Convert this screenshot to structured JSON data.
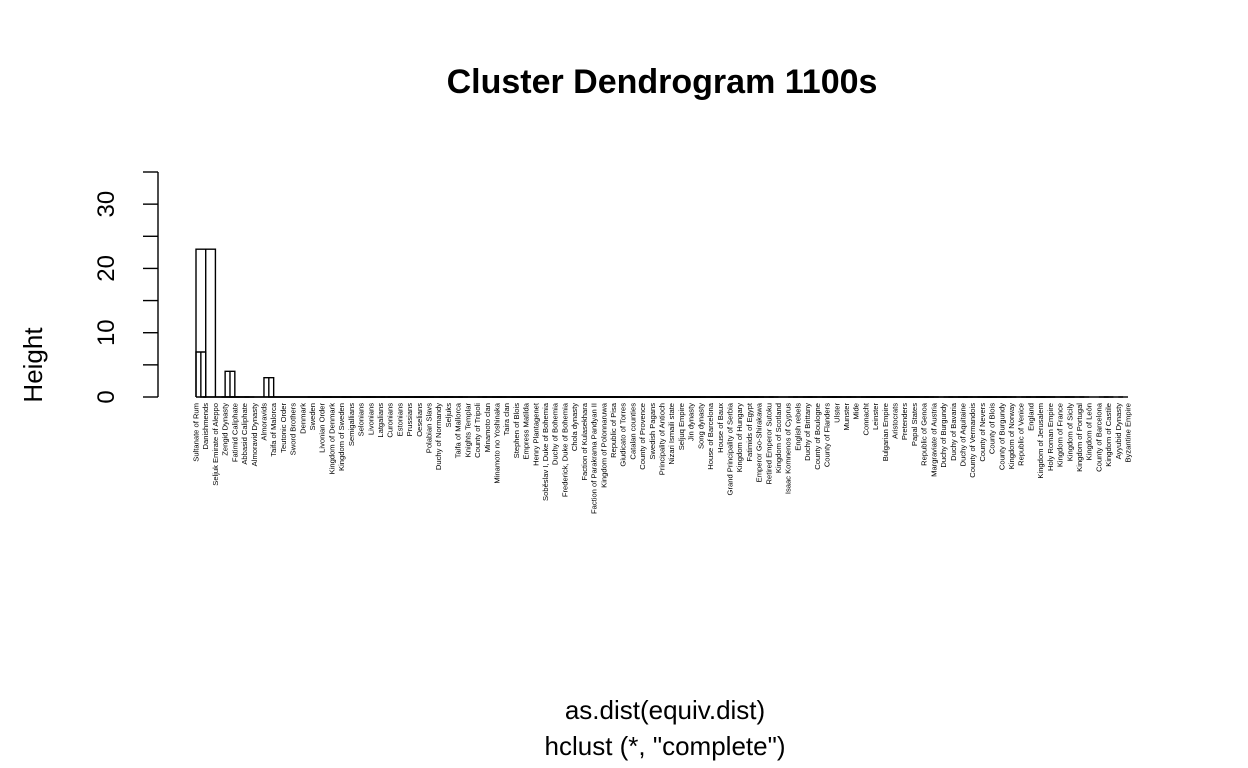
{
  "chart_data": {
    "type": "dendrogram",
    "title": "Cluster Dendrogram 1100s",
    "xlabel": "as.dist(equiv.dist)",
    "sublabel": "hclust (*, \"complete\")",
    "ylabel": "Height",
    "y_ticks": [
      0,
      10,
      20,
      30
    ],
    "y_minor_ticks": [
      5,
      15,
      25,
      35
    ],
    "ylim": [
      0,
      35
    ],
    "cluster_rect_color": "#DF536B",
    "leaves": [
      "Sultanate of Rum",
      "Danishmends",
      "Seljuk Emirate of Aleppo",
      "Zengid Dynasty",
      "Fatimid Caliphate",
      "Abbasid Caliphate",
      "Almoravid Dynasty",
      "Almoravids",
      "Taifa of Malorca",
      "Teutonic Order",
      "Sword Brothers",
      "Denmark",
      "Sweden",
      "Livonian Order",
      "Kingdom of Denmark",
      "Kingdom of Sweden",
      "Semigallians",
      "Selonians",
      "Livonians",
      "Latgalians",
      "Curonians",
      "Estonians",
      "Prussians",
      "Oeselians",
      "Polabian Slavs",
      "Duchy of Normandy",
      "Seljuks",
      "Taifa of Mallorca",
      "Knights Templar",
      "County of Tripoli",
      "Minamoto clan",
      "Minamoto no Yoshinaka",
      "Taira clan",
      "Stephen of Blois",
      "Empress Matilda",
      "Henry Plantagenet",
      "Soběslav I, Duke of Bohemia",
      "Duchy of Bohemia",
      "Frederick, Duke of Bohemia",
      "Chola dynasty",
      "Faction of Kulasekhara",
      "Faction of Parakrama Pandyan II",
      "Kingdom of Polonnaruwa",
      "Republic of Pisa",
      "Giudicato of Torres",
      "Catalan counties",
      "County of Provence",
      "Swedish Pagans",
      "Principality of Antioch",
      "Nizari Ismaili state",
      "Seljuq Empire",
      "Jin dynasty",
      "Song dynasty",
      "House of Barcelona",
      "House of Baux",
      "Grand Principality of Serbia",
      "Kingdom of Hungary",
      "Fatimids of Egypt",
      "Emperor Go-Shirakawa",
      "Retired Emperor Sutoku",
      "Kingdom of Scotland",
      "Isaac Komnenos of Cyprus",
      "English rebels",
      "Duchy of Brittany",
      "County of Boulogne",
      "County of Flanders",
      "Ulster",
      "Munster",
      "Mide",
      "Connacht",
      "Leinster",
      "Bulgarian Empire",
      "Aristocrats",
      "Pretenders",
      "Papal States",
      "Republic of Genoa",
      "Margraviate of Austria",
      "Duchy of Burgundy",
      "Duchy of Bavaria",
      "Duchy of Aquitaine",
      "County of Vermandois",
      "County of Nevers",
      "County of Blois",
      "County of Burgundy",
      "Kingdom of Norway",
      "Republic of Venice",
      "England",
      "Kingdom of Jerusalem",
      "Holy Roman Empire",
      "Kingdom of France",
      "Kingdom of Sicily",
      "Kingdom of Portugal",
      "Kingdom of León",
      "County of Barcelona",
      "Kingdom of Castile",
      "Ayyubid Dynasty",
      "Byzantine Empire"
    ],
    "merges": [
      {
        "a": [
          0,
          1
        ],
        "h": 7
      },
      {
        "a": [
          2,
          102
        ],
        "h": 23
      },
      {
        "a": [
          3,
          4
        ],
        "h": 4
      },
      {
        "a": [
          5,
          6
        ],
        "h": 0
      },
      {
        "a": [
          7,
          8
        ],
        "h": 3
      },
      {
        "a": [
          13,
          14
        ],
        "h": 0
      },
      {
        "a": [
          15,
          16
        ],
        "h": 0
      },
      {
        "a": [
          17,
          18
        ],
        "h": 0
      },
      {
        "a": [
          19,
          20
        ],
        "h": 0
      },
      {
        "a": [
          21,
          22
        ],
        "h": 0
      },
      {
        "a": [
          23,
          24
        ],
        "h": 0
      },
      {
        "a": [
          25,
          26
        ],
        "h": 0
      },
      {
        "a": [
          27,
          28
        ],
        "h": 0
      },
      {
        "a": [
          29,
          30
        ],
        "h": 0
      },
      {
        "a": [
          31,
          32
        ],
        "h": 0
      },
      {
        "a": [
          33,
          34
        ],
        "h": 0
      },
      {
        "a": [
          35,
          36
        ],
        "h": 0
      },
      {
        "a": [
          37,
          38
        ],
        "h": 0
      },
      {
        "a": [
          39,
          40
        ],
        "h": 0
      },
      {
        "a": [
          41,
          42
        ],
        "h": 0
      },
      {
        "a": [
          43,
          44
        ],
        "h": 0
      },
      {
        "a": [
          45,
          46
        ],
        "h": 0
      },
      {
        "a": [
          47,
          48
        ],
        "h": 0
      },
      {
        "a": [
          49,
          50
        ],
        "h": 0
      },
      {
        "a": [
          51,
          52
        ],
        "h": 0
      },
      {
        "a": [
          53,
          54
        ],
        "h": 0
      },
      {
        "a": [
          55,
          56
        ],
        "h": 0
      },
      {
        "a": [
          57,
          58
        ],
        "h": 0
      },
      {
        "a": [
          59,
          60
        ],
        "h": 0
      },
      {
        "a": [
          61,
          62
        ],
        "h": 0
      },
      {
        "a": [
          63,
          64
        ],
        "h": 0
      },
      {
        "a": [
          65,
          66
        ],
        "h": 0
      },
      {
        "a": [
          67,
          68
        ],
        "h": 0
      },
      {
        "a": [
          69,
          70
        ],
        "h": 0
      },
      {
        "a": [
          71,
          72
        ],
        "h": 0
      },
      {
        "a": [
          73,
          74
        ],
        "h": 0
      },
      {
        "a": [
          75,
          76
        ],
        "h": 0
      },
      {
        "a": [
          77,
          78
        ],
        "h": 0
      },
      {
        "a": [
          79,
          80
        ],
        "h": 0
      },
      {
        "a": [
          81,
          82
        ],
        "h": 0
      },
      {
        "a": [
          83,
          84
        ],
        "h": 0
      },
      {
        "a": [
          85,
          86
        ],
        "h": 0
      },
      {
        "a": [
          87,
          88
        ],
        "h": 0
      },
      {
        "a": [
          89,
          90
        ],
        "h": 0
      },
      {
        "a": [
          91,
          92
        ],
        "h": 0
      },
      {
        "a": [
          93,
          94
        ],
        "h": 0
      },
      {
        "a": [
          95,
          96
        ],
        "h": 0
      },
      {
        "a": [
          97,
          98
        ],
        "h": 0
      },
      {
        "a": [
          99,
          100
        ],
        "h": 0
      },
      {
        "a": [
          101,
          103
        ],
        "h": 0
      },
      {
        "a": [
          104,
          105
        ],
        "h": 0
      },
      {
        "a": [
          106,
          107
        ],
        "h": 0
      },
      {
        "a": [
          108,
          109
        ],
        "h": 0
      },
      {
        "a": [
          110,
          111
        ],
        "h": 0
      },
      {
        "a": [
          112,
          113
        ],
        "h": 0
      },
      {
        "a": [
          114,
          115
        ],
        "h": 0
      },
      {
        "a": [
          116,
          117
        ],
        "h": 0
      },
      {
        "a": [
          118,
          119
        ],
        "h": 0
      },
      {
        "a": [
          120,
          121
        ],
        "h": 0
      },
      {
        "a": [
          122,
          123
        ],
        "h": 0
      },
      {
        "a": [
          124,
          125
        ],
        "h": 0
      },
      {
        "a": [
          126,
          127
        ],
        "h": 0
      },
      {
        "a": [
          128,
          129
        ],
        "h": 0
      },
      {
        "a": [
          130,
          131
        ],
        "h": 0
      },
      {
        "a": [
          132,
          133
        ],
        "h": 0
      },
      {
        "a": [
          134,
          135
        ],
        "h": 0
      },
      {
        "a": [
          136,
          137
        ],
        "h": 0
      },
      {
        "a": [
          138,
          139
        ],
        "h": 0
      },
      {
        "a": [
          140,
          141
        ],
        "h": 0
      },
      {
        "a": [
          142,
          143
        ],
        "h": 0
      },
      {
        "a": [
          144,
          145
        ],
        "h": 0
      },
      {
        "a": [
          146,
          147
        ],
        "h": 0
      },
      {
        "a": [
          148,
          149
        ],
        "h": 0
      },
      {
        "a": [
          150,
          151
        ],
        "h": 0
      },
      {
        "a": [
          152,
          153
        ],
        "h": 0
      },
      {
        "a": [
          154,
          155
        ],
        "h": 0
      },
      {
        "a": [
          156,
          157
        ],
        "h": 0
      },
      {
        "a": [
          158,
          159
        ],
        "h": 0
      },
      {
        "a": [
          160,
          161
        ],
        "h": 0
      },
      {
        "a": [
          162,
          163
        ],
        "h": 0
      },
      {
        "a": [
          164,
          165
        ],
        "h": 0
      },
      {
        "a": [
          166,
          167
        ],
        "h": 0
      },
      {
        "a": [
          168,
          169
        ],
        "h": 0
      },
      {
        "a": [
          170,
          171
        ],
        "h": 0
      },
      {
        "a": [
          172,
          173
        ],
        "h": 0
      },
      {
        "a": [
          174,
          175
        ],
        "h": 0
      },
      {
        "a": [
          176,
          177
        ],
        "h": 0
      },
      {
        "a": [
          178,
          179
        ],
        "h": 0
      },
      {
        "a": [
          180,
          181
        ],
        "h": 0
      },
      {
        "a": [
          182,
          183
        ],
        "h": 0
      },
      {
        "a": [
          184,
          185
        ],
        "h": 0
      },
      {
        "a": [
          186,
          187
        ],
        "h": 0
      },
      {
        "a": [
          188,
          189
        ],
        "h": 0
      },
      {
        "a": [
          190,
          191
        ],
        "h": 0
      },
      {
        "a": [
          192,
          193
        ],
        "h": 0
      },
      {
        "a": [
          194,
          195
        ],
        "h": 0
      }
    ]
  }
}
